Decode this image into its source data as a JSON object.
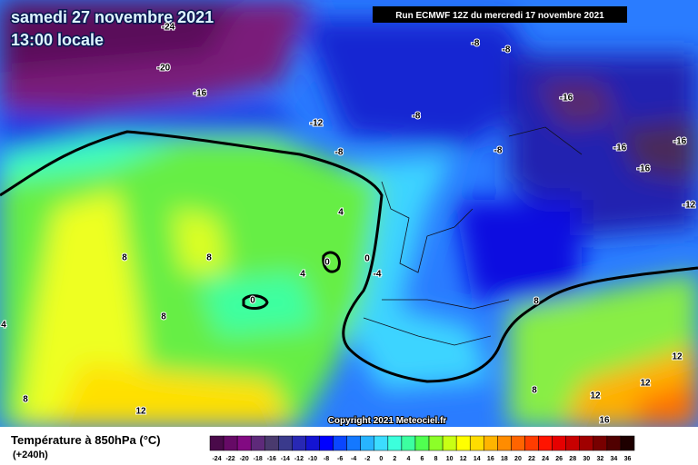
{
  "header": {
    "date": "samedi 27 novembre 2021",
    "time": "13:00 locale",
    "run": "Run ECMWF 12Z du mercredi 17 novembre 2021"
  },
  "copyright": "Copyright 2021 Meteociel.fr",
  "contour_labels": [
    -24,
    -20,
    -16,
    -12,
    -8,
    -8,
    -8,
    -8,
    -8,
    -16,
    -16,
    -16,
    -16,
    -12,
    8,
    8,
    8,
    4,
    4,
    0,
    0,
    0,
    -4,
    8,
    12,
    12,
    12,
    12,
    16,
    8,
    4,
    8
  ],
  "legend": {
    "title": "Température à 850hPa (°C)",
    "lead": "(+240h)",
    "steps": [
      {
        "value": -24,
        "color": "#4a0a4a"
      },
      {
        "value": -22,
        "color": "#660a66"
      },
      {
        "value": -20,
        "color": "#820a82"
      },
      {
        "value": -18,
        "color": "#5e2a7a"
      },
      {
        "value": -16,
        "color": "#4a3a6e"
      },
      {
        "value": -14,
        "color": "#3a3a8c"
      },
      {
        "value": -12,
        "color": "#2828b4"
      },
      {
        "value": -10,
        "color": "#1414d2"
      },
      {
        "value": -8,
        "color": "#0000ff"
      },
      {
        "value": -6,
        "color": "#0a46ff"
      },
      {
        "value": -4,
        "color": "#1478ff"
      },
      {
        "value": -2,
        "color": "#28b4ff"
      },
      {
        "value": 0,
        "color": "#3cdcff"
      },
      {
        "value": 2,
        "color": "#3cffdc"
      },
      {
        "value": 4,
        "color": "#3cffa0"
      },
      {
        "value": 6,
        "color": "#50ff50"
      },
      {
        "value": 8,
        "color": "#8cff28"
      },
      {
        "value": 10,
        "color": "#c8ff14"
      },
      {
        "value": 12,
        "color": "#ffff00"
      },
      {
        "value": 14,
        "color": "#ffdc00"
      },
      {
        "value": 16,
        "color": "#ffb400"
      },
      {
        "value": 18,
        "color": "#ff8c00"
      },
      {
        "value": 20,
        "color": "#ff6400"
      },
      {
        "value": 22,
        "color": "#ff3c00"
      },
      {
        "value": 24,
        "color": "#ff1400"
      },
      {
        "value": 26,
        "color": "#e60000"
      },
      {
        "value": 28,
        "color": "#c80000"
      },
      {
        "value": 30,
        "color": "#a00000"
      },
      {
        "value": 32,
        "color": "#780000"
      },
      {
        "value": 34,
        "color": "#500000"
      },
      {
        "value": 36,
        "color": "#1e0000"
      }
    ]
  }
}
